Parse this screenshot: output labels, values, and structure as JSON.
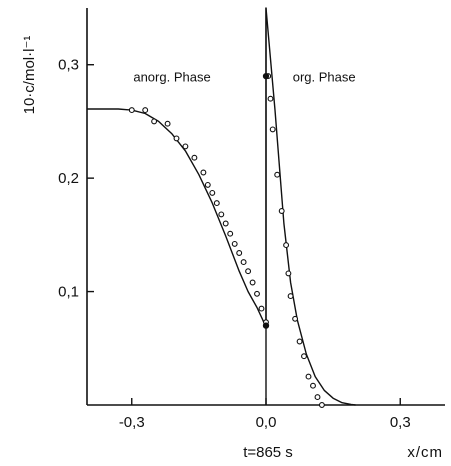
{
  "chart_data": {
    "type": "scatter",
    "title": "",
    "xlabel": "x/cm",
    "ylabel": "10·c/mol·l⁻¹",
    "xlim": [
      -0.4,
      0.4
    ],
    "ylim": [
      0,
      0.35
    ],
    "x_ticks": [
      -0.3,
      0.0,
      0.3
    ],
    "x_tick_labels": [
      "-0,3",
      "0,0",
      "0,3"
    ],
    "y_ticks": [
      0.1,
      0.2,
      0.3
    ],
    "y_tick_labels": [
      "0,1",
      "0,2",
      "0,3"
    ],
    "grid": false,
    "annotations": [
      {
        "text": "anorg. Phase",
        "x": -0.21,
        "y": 0.285
      },
      {
        "text": "org. Phase",
        "x": 0.13,
        "y": 0.285
      },
      {
        "text": "t=865 s",
        "x": 0.0,
        "y": -0.048
      }
    ],
    "series": [
      {
        "kind": "line",
        "x": [
          -0.4,
          -0.33,
          -0.3,
          -0.27,
          -0.24,
          -0.21,
          -0.18,
          -0.15,
          -0.12,
          -0.09,
          -0.06,
          -0.04,
          -0.02,
          -0.005,
          0.0
        ],
        "y": [
          0.261,
          0.261,
          0.26,
          0.257,
          0.25,
          0.239,
          0.224,
          0.203,
          0.178,
          0.149,
          0.118,
          0.1,
          0.086,
          0.073,
          0.07
        ]
      },
      {
        "kind": "line",
        "x": [
          0.0,
          0.0,
          0.02,
          0.04,
          0.055,
          0.07,
          0.09,
          0.11,
          0.13,
          0.15,
          0.17,
          0.19,
          0.2
        ],
        "y": [
          0.07,
          0.35,
          0.26,
          0.16,
          0.108,
          0.075,
          0.045,
          0.025,
          0.013,
          0.006,
          0.002,
          0.0005,
          0.0
        ]
      },
      {
        "kind": "points",
        "marker": "circle",
        "x": [
          -0.3,
          -0.27,
          -0.25,
          -0.22,
          -0.2,
          -0.18,
          -0.16,
          -0.14,
          -0.13,
          -0.12,
          -0.11,
          -0.1,
          -0.09,
          -0.08,
          -0.07,
          -0.06,
          -0.05,
          -0.04,
          -0.03,
          -0.02,
          -0.01,
          0.0
        ],
        "y": [
          0.26,
          0.26,
          0.25,
          0.248,
          0.235,
          0.228,
          0.218,
          0.205,
          0.194,
          0.187,
          0.178,
          0.168,
          0.16,
          0.151,
          0.142,
          0.134,
          0.126,
          0.118,
          0.108,
          0.098,
          0.085,
          0.073
        ]
      },
      {
        "kind": "points",
        "marker": "circle",
        "x": [
          0.0,
          0.005,
          0.01,
          0.015,
          0.025,
          0.035,
          0.045,
          0.05,
          0.055,
          0.065,
          0.075,
          0.085,
          0.095,
          0.105,
          0.115,
          0.125
        ],
        "y": [
          0.07,
          0.29,
          0.27,
          0.243,
          0.203,
          0.171,
          0.141,
          0.116,
          0.096,
          0.076,
          0.056,
          0.043,
          0.025,
          0.017,
          0.007,
          0.0
        ]
      },
      {
        "kind": "points",
        "marker": "filled-circle",
        "x": [
          0.0,
          0.0
        ],
        "y": [
          0.29,
          0.07
        ]
      }
    ]
  }
}
